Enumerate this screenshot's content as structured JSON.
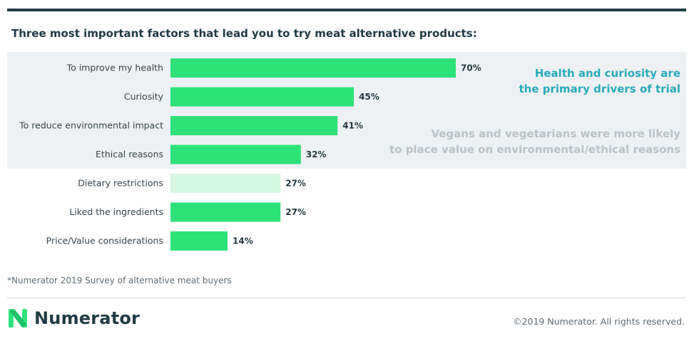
{
  "title": "Three most important factors that lead you to try meat alternative products:",
  "callouts": {
    "primary": [
      "Health and curiosity are",
      "the primary drivers of trial"
    ],
    "secondary": [
      "Vegans and vegetarians were more likely",
      "to place value on environmental/ethical reasons"
    ]
  },
  "footnote": "*Numerator 2019 Survey of alternative meat buyers",
  "logo": {
    "name": "Numerator",
    "icon": "numerator-n-logo-icon"
  },
  "copyright": "©2019 Numerator. All rights reserved.",
  "colors": {
    "bar": "#2ee27a",
    "bar_muted": "#d6f7e3",
    "callout_primary": "#2aa9bd",
    "callout_secondary": "#b9c2c7",
    "band": "#eef1f3",
    "dark": "#1e3b44"
  },
  "chart_data": {
    "type": "bar",
    "orientation": "horizontal",
    "categories": [
      "To improve my health",
      "Curiosity",
      "To reduce environmental impact",
      "Ethical reasons",
      "Dietary restrictions",
      "Liked the ingredients",
      "Price/Value considerations"
    ],
    "values": [
      70,
      45,
      41,
      32,
      27,
      27,
      14
    ],
    "value_labels": [
      "70%",
      "45%",
      "41%",
      "32%",
      "27%",
      "27%",
      "14%"
    ],
    "muted": [
      false,
      false,
      false,
      false,
      true,
      false,
      false
    ],
    "highlight_groups": [
      [
        0,
        1
      ],
      [
        2,
        3
      ]
    ],
    "xlim": [
      0,
      70
    ],
    "grid": false,
    "legend": "none"
  }
}
